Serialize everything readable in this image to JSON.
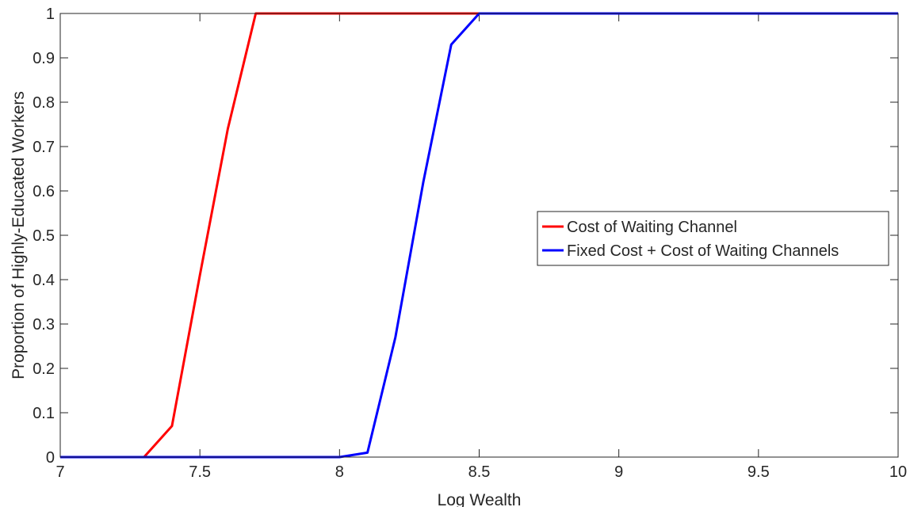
{
  "chart_data": {
    "type": "line",
    "title": "",
    "xlabel": "Log Wealth",
    "ylabel": "Proportion of Highly-Educated Workers",
    "xlim": [
      7,
      10
    ],
    "ylim": [
      0,
      1
    ],
    "xticks": [
      7,
      7.5,
      8,
      8.5,
      9,
      9.5,
      10
    ],
    "xtick_labels": [
      "7",
      "7.5",
      "8",
      "8.5",
      "9",
      "9.5",
      "10"
    ],
    "yticks": [
      0,
      0.1,
      0.2,
      0.3,
      0.4,
      0.5,
      0.6,
      0.7,
      0.8,
      0.9,
      1
    ],
    "ytick_labels": [
      "0",
      "0.1",
      "0.2",
      "0.3",
      "0.4",
      "0.5",
      "0.6",
      "0.7",
      "0.8",
      "0.9",
      "1"
    ],
    "grid": false,
    "legend_position": "center-right",
    "series": [
      {
        "name": "Cost of Waiting Channel",
        "color": "#ff0000",
        "x": [
          7,
          7.1,
          7.2,
          7.3,
          7.4,
          7.5,
          7.6,
          7.7,
          7.8,
          7.9,
          8,
          8.5,
          9,
          9.5,
          10
        ],
        "y": [
          0,
          0,
          0,
          0,
          0.07,
          0.41,
          0.74,
          1,
          1,
          1,
          1,
          1,
          1,
          1,
          1
        ]
      },
      {
        "name": "Fixed Cost + Cost of Waiting Channels",
        "color": "#0000ff",
        "x": [
          7,
          7.5,
          8,
          8.1,
          8.2,
          8.3,
          8.4,
          8.5,
          9,
          9.5,
          10
        ],
        "y": [
          0,
          0,
          0,
          0.01,
          0.27,
          0.62,
          0.93,
          1,
          1,
          1,
          1
        ]
      }
    ]
  }
}
